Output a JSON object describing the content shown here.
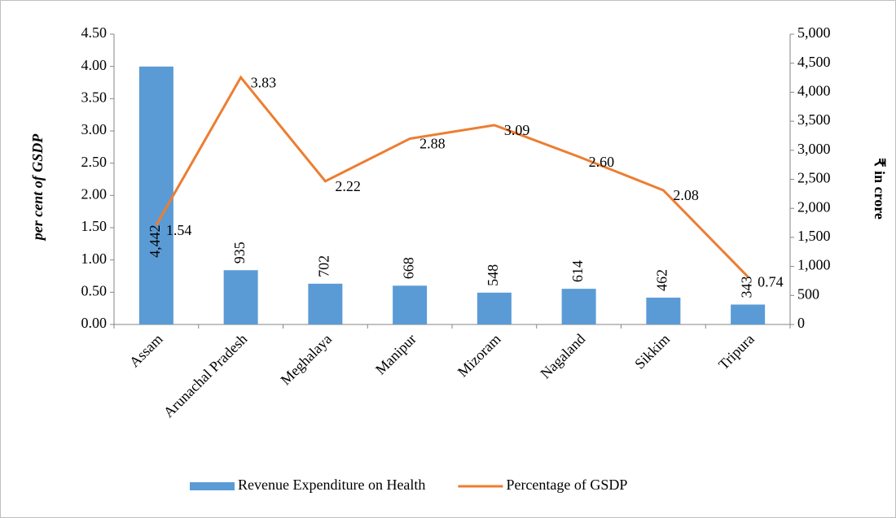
{
  "chart_data": {
    "type": "bar_line",
    "ylabel": "per cent of GSDP",
    "y2label": "₹ in crore",
    "categories": [
      "Assam",
      "Arunachal Pradesh",
      "Meghalaya",
      "Manipur",
      "Mizoram",
      "Nagaland",
      "Sikkim",
      "Tripura"
    ],
    "series": [
      {
        "name": "Revenue Expenditure on Health",
        "type": "bar",
        "axis": "y2",
        "color": "#5b9bd5",
        "values": [
          4442,
          935,
          702,
          668,
          548,
          614,
          462,
          343
        ],
        "value_labels": [
          "4,442",
          "935",
          "702",
          "668",
          "548",
          "614",
          "462",
          "343"
        ]
      },
      {
        "name": "Percentage of GSDP",
        "type": "line",
        "color": "#ed7d31",
        "values": [
          1.54,
          3.83,
          2.22,
          2.88,
          3.09,
          2.6,
          2.08,
          0.74
        ],
        "value_labels": [
          "1.54",
          "3.83",
          "2.22",
          "2.88",
          "3.09",
          "2.60",
          "2.08",
          "0.74"
        ]
      }
    ],
    "ylim": [
      0,
      4.5
    ],
    "yticks": [
      {
        "value": 0,
        "label": "0.00"
      },
      {
        "value": 0.5,
        "label": "0.50"
      },
      {
        "value": 1,
        "label": "1.00"
      },
      {
        "value": 1.5,
        "label": "1.50"
      },
      {
        "value": 2,
        "label": "2.00"
      },
      {
        "value": 2.5,
        "label": "2.50"
      },
      {
        "value": 3,
        "label": "3.00"
      },
      {
        "value": 3.5,
        "label": "3.50"
      },
      {
        "value": 4,
        "label": "4.00"
      },
      {
        "value": 4.5,
        "label": "4.50"
      }
    ],
    "y2lim": [
      0,
      5000
    ],
    "y2ticks": [
      0,
      500,
      {
        "value": 1000,
        "label": "1,000"
      },
      {
        "value": 1500,
        "label": "1,500"
      },
      {
        "value": 2000,
        "label": "2,000"
      },
      {
        "value": 2500,
        "label": "2,500"
      },
      {
        "value": 3000,
        "label": "3,000"
      },
      {
        "value": 3500,
        "label": "3,500"
      },
      {
        "value": 4000,
        "label": "4,000"
      },
      {
        "value": 4500,
        "label": "4,500"
      },
      {
        "value": 5000,
        "label": "5,000"
      }
    ],
    "grid": false,
    "legend": "bottom"
  }
}
